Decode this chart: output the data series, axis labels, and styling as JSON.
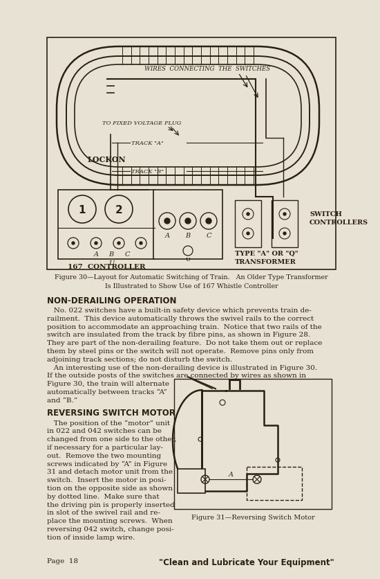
{
  "bg_color": "#e8e2d5",
  "text_color": "#2a2010",
  "page_number": "Page  18",
  "bottom_slogan": "\"Clean and Lubricate Your Equipment\"",
  "fig30_caption_line1": "Figure 30—Layout for Automatic Switching of Train.   An Older Type Transformer",
  "fig30_caption_line2": "Is Illustrated to Show Use of 167 Whistle Controller",
  "fig31_caption": "Figure 31—Reversing Switch Motor",
  "section1_title": "NON-DERAILING OPERATION",
  "section1_full": [
    "   No. 022 switches have a built-in safety device which prevents train de-",
    "railment.  This device automatically throws the swivel rails to the correct",
    "position to accommodate an approaching train.  Notice that two rails of the",
    "switch are insulated from the track by fibre pins, as shown in Figure 28.",
    "They are part of the non-derailing feature.  Do not take them out or replace",
    "them by steel pins or the switch will not operate.  Remove pins only from",
    "adjoining track sections; do not disturb the switch.",
    "   An interesting use of the non-derailing device is illustrated in Figure 30.",
    "If the outside posts of the switches are connected by wires as shown in"
  ],
  "section1_narrow": [
    "Figure 30, the train will alternate",
    "automatically between tracks “A”",
    "and “B.”"
  ],
  "section2_title": "REVERSING SWITCH MOTOR",
  "section2_narrow": [
    "   The position of the “motor” unit",
    "in 022 and 042 switches can be",
    "changed from one side to the other,",
    "if necessary for a particular lay-",
    "out.  Remove the two mounting",
    "screws indicated by “A” in Figure",
    "31 and detach motor unit from the",
    "switch.  Insert the motor in posi-",
    "tion on the opposite side as shown",
    "by dotted line.  Make sure that",
    "the driving pin is properly inserted",
    "in slot of the swivel rail and re-",
    "place the mounting screws.  When",
    "reversing 042 switch, change posi-",
    "tion of inside lamp wire."
  ]
}
